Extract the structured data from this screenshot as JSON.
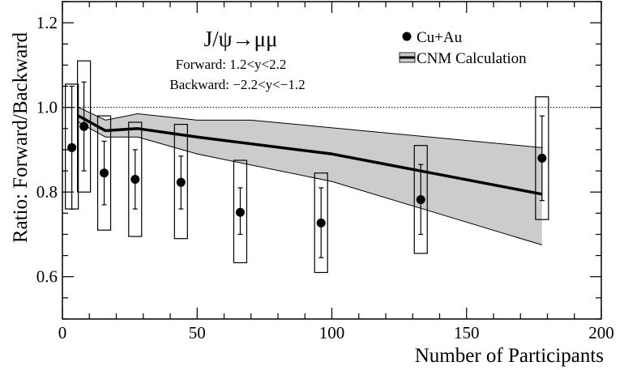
{
  "chart_data": {
    "type": "scatter",
    "title": "",
    "xlabel": "Number of Participants",
    "ylabel": "Ratio: Forward/Backward",
    "xlim": [
      0,
      200
    ],
    "ylim": [
      0.5,
      1.25
    ],
    "x_ticks": [
      0,
      50,
      100,
      150,
      200
    ],
    "x_tick_labels": [
      "0",
      "50",
      "100",
      "150",
      "200"
    ],
    "y_ticks": [
      0.6,
      0.8,
      1.0,
      1.2
    ],
    "y_tick_labels": [
      "0.6",
      "0.8",
      "1.0",
      "1.2"
    ],
    "reference_line": 1.0,
    "grid": false,
    "annotations": {
      "process": "J/ψ→μμ",
      "forward": "Forward: 1.2<y<2.2",
      "backward": "Backward: −2.2<y<−1.2"
    },
    "legend": {
      "placement": "top-right",
      "data_label": "Cu+Au",
      "model_label": "CNM Calculation"
    },
    "series": [
      {
        "name": "Cu+Au",
        "points": [
          {
            "x": 3.5,
            "y": 0.905,
            "stat_lo": 0.76,
            "stat_hi": 1.05,
            "sys_lo": 0.76,
            "sys_hi": 1.055
          },
          {
            "x": 8,
            "y": 0.955,
            "stat_lo": 0.85,
            "stat_hi": 1.06,
            "sys_lo": 0.8,
            "sys_hi": 1.11
          },
          {
            "x": 15.5,
            "y": 0.845,
            "stat_lo": 0.77,
            "stat_hi": 0.92,
            "sys_lo": 0.71,
            "sys_hi": 0.98
          },
          {
            "x": 27,
            "y": 0.83,
            "stat_lo": 0.76,
            "stat_hi": 0.9,
            "sys_lo": 0.695,
            "sys_hi": 0.965
          },
          {
            "x": 44,
            "y": 0.823,
            "stat_lo": 0.76,
            "stat_hi": 0.885,
            "sys_lo": 0.69,
            "sys_hi": 0.96
          },
          {
            "x": 66,
            "y": 0.752,
            "stat_lo": 0.7,
            "stat_hi": 0.81,
            "sys_lo": 0.633,
            "sys_hi": 0.875
          },
          {
            "x": 96,
            "y": 0.727,
            "stat_lo": 0.645,
            "stat_hi": 0.81,
            "sys_lo": 0.61,
            "sys_hi": 0.845
          },
          {
            "x": 133,
            "y": 0.782,
            "stat_lo": 0.7,
            "stat_hi": 0.865,
            "sys_lo": 0.655,
            "sys_hi": 0.91
          },
          {
            "x": 178,
            "y": 0.88,
            "stat_lo": 0.78,
            "stat_hi": 0.98,
            "sys_lo": 0.735,
            "sys_hi": 1.025
          }
        ]
      }
    ],
    "model": {
      "name": "CNM Calculation",
      "central": [
        [
          6,
          0.98
        ],
        [
          16,
          0.945
        ],
        [
          28,
          0.95
        ],
        [
          50,
          0.93
        ],
        [
          100,
          0.89
        ],
        [
          178,
          0.795
        ]
      ],
      "band_upper": [
        [
          6,
          1.0
        ],
        [
          16,
          0.97
        ],
        [
          28,
          0.985
        ],
        [
          50,
          0.97
        ],
        [
          70,
          0.97
        ],
        [
          178,
          0.905
        ]
      ],
      "band_lower": [
        [
          6,
          0.965
        ],
        [
          16,
          0.93
        ],
        [
          28,
          0.93
        ],
        [
          50,
          0.89
        ],
        [
          100,
          0.825
        ],
        [
          178,
          0.675
        ]
      ]
    }
  }
}
